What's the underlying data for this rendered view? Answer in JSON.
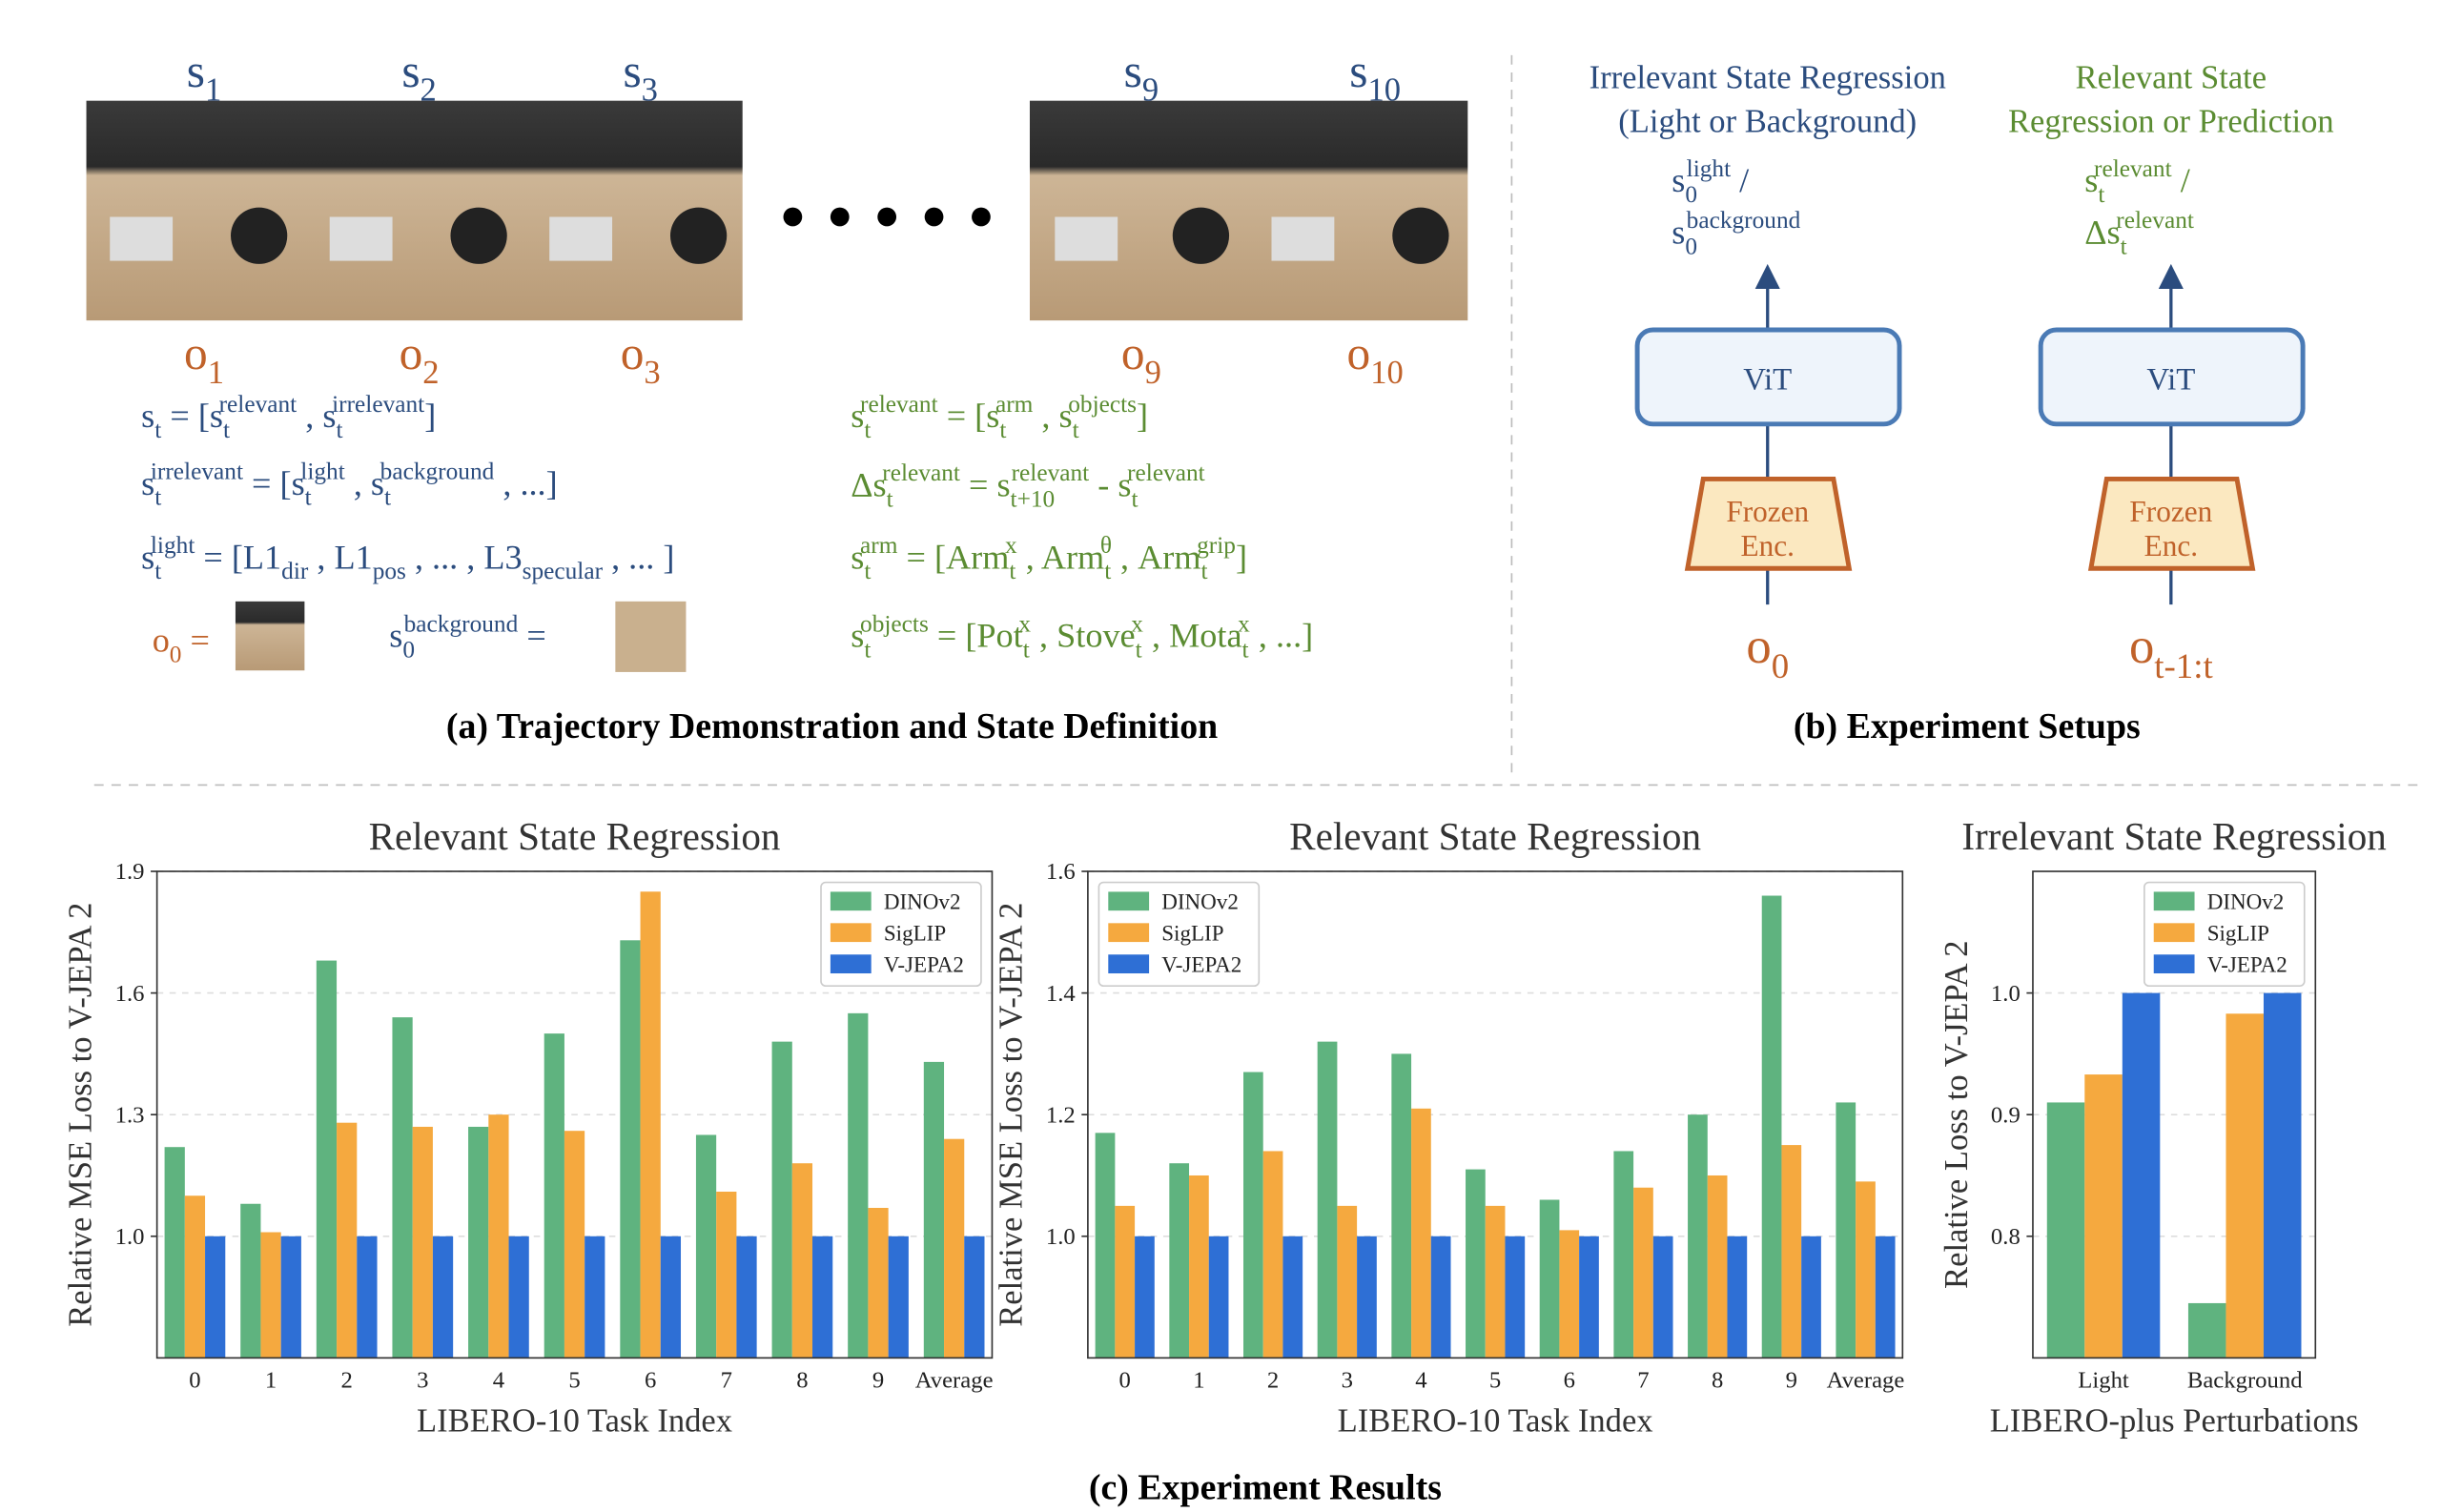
{
  "panel_a": {
    "state_labels": [
      [
        {
          "text": "s",
          "sub": "1"
        }
      ],
      [
        {
          "text": "s",
          "sub": "2"
        }
      ],
      [
        {
          "text": "s",
          "sub": "3"
        }
      ],
      [
        {
          "text": "s",
          "sub": "9"
        }
      ],
      [
        {
          "text": "s",
          "sub": "10"
        }
      ]
    ],
    "obs_labels": [
      [
        {
          "text": "o",
          "sub": "1"
        }
      ],
      [
        {
          "text": "o",
          "sub": "2"
        }
      ],
      [
        {
          "text": "o",
          "sub": "3"
        }
      ],
      [
        {
          "text": "o",
          "sub": "9"
        }
      ],
      [
        {
          "text": "o",
          "sub": "10"
        }
      ]
    ],
    "left_formulas": [
      [
        {
          "text": "s",
          "sub": "t"
        },
        {
          "text": " = ["
        },
        {
          "text": "s",
          "sub": "t",
          "sup": "relevant"
        },
        {
          "text": " , "
        },
        {
          "text": "s",
          "sub": "t",
          "sup": "irrelevant"
        },
        {
          "text": "]"
        }
      ],
      [
        {
          "text": "s",
          "sub": "t",
          "sup": "irrelevant"
        },
        {
          "text": " = ["
        },
        {
          "text": "s",
          "sub": "t",
          "sup": "light"
        },
        {
          "text": " , "
        },
        {
          "text": "s",
          "sub": "t",
          "sup": "background"
        },
        {
          "text": " , ...]"
        }
      ],
      [
        {
          "text": "s",
          "sub": "t",
          "sup": "light"
        },
        {
          "text": " = [L1",
          "sub": "dir"
        },
        {
          "text": " , L1",
          "sub": "pos"
        },
        {
          "text": " , ... , L3",
          "sub": "specular"
        },
        {
          "text": " , ... ]"
        }
      ]
    ],
    "o0_formula": [
      {
        "text": "o",
        "sub": "0"
      },
      {
        "text": " ="
      }
    ],
    "background_formula": [
      {
        "text": "s",
        "sub": "0",
        "sup": "background"
      },
      {
        "text": " ="
      }
    ],
    "right_formulas": [
      [
        {
          "text": "s",
          "sub": "t",
          "sup": "relevant"
        },
        {
          "text": " = ["
        },
        {
          "text": "s",
          "sub": "t",
          "sup": "arm"
        },
        {
          "text": " , "
        },
        {
          "text": "s",
          "sub": "t",
          "sup": "objects"
        },
        {
          "text": "]"
        }
      ],
      [
        {
          "text": "Δs",
          "sub": "t",
          "sup": "relevant"
        },
        {
          "text": " = s",
          "sub": "t+10",
          "sup": "relevant"
        },
        {
          "text": " - s",
          "sub": "t",
          "sup": "relevant"
        }
      ],
      [
        {
          "text": "s",
          "sub": "t",
          "sup": "arm"
        },
        {
          "text": " = [Arm",
          "sub": "t",
          "sup": "x"
        },
        {
          "text": " , Arm",
          "sub": "t",
          "sup": "θ"
        },
        {
          "text": " , Arm",
          "sub": "t",
          "sup": "grip"
        },
        {
          "text": "]"
        }
      ],
      [
        {
          "text": "s",
          "sub": "t",
          "sup": "objects"
        },
        {
          "text": " = [Pot",
          "sub": "t",
          "sup": "x"
        },
        {
          "text": " , Stove",
          "sub": "t",
          "sup": "x"
        },
        {
          "text": " , Mota",
          "sub": "t",
          "sup": "x"
        },
        {
          "text": " , ...]"
        }
      ]
    ],
    "caption": "(a) Trajectory Demonstration and State Definition"
  },
  "panel_b": {
    "columns": [
      {
        "title": [
          "Irrelevant State Regression",
          "(Light or Background)"
        ],
        "outputs": [
          [
            {
              "text": "s",
              "sub": "0",
              "sup": "light"
            },
            {
              "text": " /"
            }
          ],
          [
            {
              "text": "s",
              "sub": "0",
              "sup": "background"
            }
          ]
        ],
        "model": "ViT",
        "encoder": [
          "Frozen",
          "Enc."
        ],
        "input": [
          {
            "text": "o",
            "sub": "0"
          }
        ]
      },
      {
        "title": [
          "Relevant State",
          "Regression or Prediction"
        ],
        "outputs": [
          [
            {
              "text": "s",
              "sub": "t",
              "sup": "relevant"
            },
            {
              "text": " /"
            }
          ],
          [
            {
              "text": "Δs",
              "sub": "t",
              "sup": "relevant"
            }
          ]
        ],
        "model": "ViT",
        "encoder": [
          "Frozen",
          "Enc."
        ],
        "input": [
          {
            "text": "o",
            "sub": "t-1:t"
          }
        ]
      }
    ],
    "caption": "(b) Experiment Setups"
  },
  "panel_c": {
    "caption": "(c) Experiment Results"
  },
  "chart_data": [
    {
      "type": "bar",
      "title": "Relevant State Regression",
      "x_label": "LIBERO-10 Task Index",
      "y_label": "Relative MSE Loss to V-JEPA 2",
      "categories": [
        "0",
        "1",
        "2",
        "3",
        "4",
        "5",
        "6",
        "7",
        "8",
        "9",
        "Average"
      ],
      "series": [
        {
          "name": "DINOv2",
          "color": "#5fb37f",
          "values": [
            1.22,
            1.08,
            1.68,
            1.54,
            1.27,
            1.5,
            1.73,
            1.25,
            1.48,
            1.55,
            1.43
          ]
        },
        {
          "name": "SigLIP",
          "color": "#f5a93f",
          "values": [
            1.1,
            1.01,
            1.28,
            1.27,
            1.3,
            1.26,
            1.85,
            1.11,
            1.18,
            1.07,
            1.24
          ]
        },
        {
          "name": "V-JEPA2",
          "color": "#2e6fd5",
          "values": [
            1,
            1,
            1,
            1,
            1,
            1,
            1,
            1,
            1,
            1,
            1
          ]
        }
      ],
      "ylim": [
        0.7,
        1.9
      ],
      "yticks": [
        {
          "value": 1,
          "label": "1.0"
        },
        1.3,
        1.6,
        1.9
      ],
      "grid": true,
      "legend": "upper right"
    },
    {
      "type": "bar",
      "title": "Relevant State Regression",
      "x_label": "LIBERO-10 Task Index",
      "y_label": "Relative MSE Loss to V-JEPA 2",
      "categories": [
        "0",
        "1",
        "2",
        "3",
        "4",
        "5",
        "6",
        "7",
        "8",
        "9",
        "Average"
      ],
      "series": [
        {
          "name": "DINOv2",
          "color": "#5fb37f",
          "values": [
            1.17,
            1.12,
            1.27,
            1.32,
            1.3,
            1.11,
            1.06,
            1.14,
            1.2,
            1.56,
            1.22
          ]
        },
        {
          "name": "SigLIP",
          "color": "#f5a93f",
          "values": [
            1.05,
            1.1,
            1.14,
            1.05,
            1.21,
            1.05,
            1.01,
            1.08,
            1.1,
            1.15,
            1.09
          ]
        },
        {
          "name": "V-JEPA2",
          "color": "#2e6fd5",
          "values": [
            1,
            1,
            1,
            1,
            1,
            1,
            1,
            1,
            1,
            1,
            1
          ]
        }
      ],
      "ylim": [
        0.8,
        1.6
      ],
      "yticks": [
        {
          "value": 1,
          "label": "1.0"
        },
        1.2,
        1.4,
        1.6
      ],
      "grid": true,
      "legend": "upper left"
    },
    {
      "type": "bar",
      "title": "Irrelevant State Regression",
      "x_label": "LIBERO-plus Perturbations",
      "y_label": "Relative Loss to V-JEPA 2",
      "categories": [
        "Light",
        "Background"
      ],
      "series": [
        {
          "name": "DINOv2",
          "color": "#5fb37f",
          "values": [
            0.91,
            0.745
          ]
        },
        {
          "name": "SigLIP",
          "color": "#f5a93f",
          "values": [
            0.933,
            0.983
          ]
        },
        {
          "name": "V-JEPA2",
          "color": "#2e6fd5",
          "values": [
            1,
            1
          ]
        }
      ],
      "ylim": [
        0.7,
        1.1
      ],
      "yticks": [
        0.8,
        0.9,
        {
          "value": 1,
          "label": "1.0"
        }
      ],
      "grid": true,
      "legend": "upper right"
    }
  ]
}
